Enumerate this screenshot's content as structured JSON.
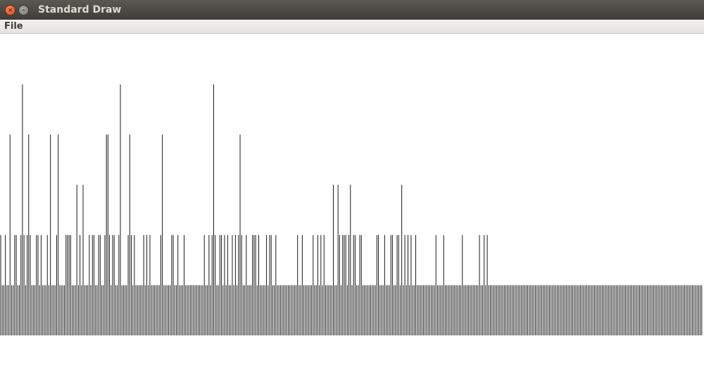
{
  "window": {
    "title": "Standard Draw",
    "close_glyph": "×",
    "minimize_glyph": "–"
  },
  "menu": {
    "items": [
      {
        "label": "File"
      }
    ]
  },
  "chart_data": {
    "type": "bar",
    "values_encoding": "repeat_runs",
    "runs": [
      [
        1,
        1
      ],
      [
        2,
        0
      ],
      [
        1,
        1
      ],
      [
        2,
        0
      ],
      [
        1,
        3
      ],
      [
        1,
        0
      ],
      [
        1,
        0
      ],
      [
        1,
        1
      ],
      [
        1,
        1
      ],
      [
        2,
        0
      ],
      [
        1,
        1
      ],
      [
        1,
        4
      ],
      [
        1,
        1
      ],
      [
        1,
        0
      ],
      [
        1,
        1
      ],
      [
        1,
        3
      ],
      [
        1,
        1
      ],
      [
        3,
        0
      ],
      [
        1,
        1
      ],
      [
        1,
        1
      ],
      [
        1,
        0
      ],
      [
        1,
        1
      ],
      [
        1,
        0
      ],
      [
        2,
        0
      ],
      [
        1,
        1
      ],
      [
        1,
        0
      ],
      [
        1,
        3
      ],
      [
        2,
        0
      ],
      [
        1,
        0
      ],
      [
        1,
        1
      ],
      [
        1,
        3
      ],
      [
        2,
        0
      ],
      [
        2,
        0
      ],
      [
        4,
        1
      ],
      [
        1,
        0
      ],
      [
        2,
        0
      ],
      [
        1,
        2
      ],
      [
        1,
        0
      ],
      [
        1,
        1
      ],
      [
        1,
        0
      ],
      [
        1,
        2
      ],
      [
        2,
        0
      ],
      [
        1,
        0
      ],
      [
        1,
        1
      ],
      [
        1,
        0
      ],
      [
        1,
        1
      ],
      [
        1,
        1
      ],
      [
        1,
        0
      ],
      [
        1,
        0
      ],
      [
        1,
        1
      ],
      [
        1,
        1
      ],
      [
        1,
        0
      ],
      [
        1,
        0
      ],
      [
        1,
        1
      ],
      [
        2,
        3
      ],
      [
        1,
        1
      ],
      [
        1,
        0
      ],
      [
        1,
        1
      ],
      [
        1,
        1
      ],
      [
        2,
        0
      ],
      [
        1,
        1
      ],
      [
        1,
        4
      ],
      [
        2,
        0
      ],
      [
        2,
        0
      ],
      [
        1,
        1
      ],
      [
        1,
        3
      ],
      [
        1,
        1
      ],
      [
        1,
        0
      ],
      [
        1,
        1
      ],
      [
        2,
        0
      ],
      [
        1,
        0
      ],
      [
        2,
        0
      ],
      [
        1,
        1
      ],
      [
        1,
        0
      ],
      [
        1,
        1
      ],
      [
        1,
        0
      ],
      [
        1,
        1
      ],
      [
        1,
        0
      ],
      [
        3,
        0
      ],
      [
        2,
        0
      ],
      [
        1,
        1
      ],
      [
        1,
        3
      ],
      [
        1,
        0
      ],
      [
        3,
        0
      ],
      [
        1,
        0
      ],
      [
        1,
        1
      ],
      [
        1,
        1
      ],
      [
        1,
        0
      ],
      [
        1,
        0
      ],
      [
        1,
        1
      ],
      [
        1,
        0
      ],
      [
        1,
        0
      ],
      [
        1,
        0
      ],
      [
        1,
        1
      ],
      [
        3,
        0
      ],
      [
        3,
        0
      ],
      [
        1,
        0
      ],
      [
        3,
        0
      ],
      [
        2,
        0
      ],
      [
        1,
        1
      ],
      [
        1,
        0
      ],
      [
        1,
        0
      ],
      [
        1,
        1
      ],
      [
        1,
        0
      ],
      [
        1,
        1
      ],
      [
        1,
        4
      ],
      [
        1,
        1
      ],
      [
        2,
        0
      ],
      [
        1,
        1
      ],
      [
        1,
        1
      ],
      [
        1,
        0
      ],
      [
        1,
        1
      ],
      [
        1,
        0
      ],
      [
        1,
        1
      ],
      [
        1,
        0
      ],
      [
        1,
        0
      ],
      [
        1,
        1
      ],
      [
        1,
        0
      ],
      [
        1,
        1
      ],
      [
        1,
        0
      ],
      [
        1,
        1
      ],
      [
        1,
        3
      ],
      [
        1,
        1
      ],
      [
        1,
        0
      ],
      [
        1,
        0
      ],
      [
        1,
        1
      ],
      [
        3,
        0
      ],
      [
        1,
        1
      ],
      [
        1,
        1
      ],
      [
        1,
        1
      ],
      [
        1,
        0
      ],
      [
        1,
        1
      ],
      [
        1,
        0
      ],
      [
        1,
        0
      ],
      [
        2,
        0
      ],
      [
        1,
        1
      ],
      [
        1,
        0
      ],
      [
        1,
        1
      ],
      [
        1,
        1
      ],
      [
        1,
        0
      ],
      [
        1,
        0
      ],
      [
        1,
        1
      ],
      [
        3,
        0
      ],
      [
        2,
        0
      ],
      [
        2,
        0
      ],
      [
        2,
        0
      ],
      [
        2,
        0
      ],
      [
        2,
        0
      ],
      [
        1,
        1
      ],
      [
        1,
        0
      ],
      [
        1,
        0
      ],
      [
        1,
        1
      ],
      [
        1,
        0
      ],
      [
        1,
        0
      ],
      [
        2,
        0
      ],
      [
        2,
        0
      ],
      [
        1,
        1
      ],
      [
        2,
        0
      ],
      [
        1,
        1
      ],
      [
        1,
        0
      ],
      [
        1,
        1
      ],
      [
        1,
        0
      ],
      [
        1,
        1
      ],
      [
        1,
        0
      ],
      [
        1,
        0
      ],
      [
        1,
        0
      ],
      [
        2,
        0
      ],
      [
        1,
        2
      ],
      [
        1,
        0
      ],
      [
        1,
        0
      ],
      [
        1,
        2
      ],
      [
        1,
        1
      ],
      [
        1,
        0
      ],
      [
        1,
        1
      ],
      [
        1,
        1
      ],
      [
        1,
        1
      ],
      [
        1,
        0
      ],
      [
        1,
        1
      ],
      [
        1,
        2
      ],
      [
        1,
        0
      ],
      [
        1,
        1
      ],
      [
        1,
        1
      ],
      [
        1,
        0
      ],
      [
        1,
        0
      ],
      [
        1,
        1
      ],
      [
        1,
        1
      ],
      [
        1,
        0
      ],
      [
        1,
        0
      ],
      [
        3,
        0
      ],
      [
        2,
        0
      ],
      [
        2,
        0
      ],
      [
        1,
        1
      ],
      [
        1,
        1
      ],
      [
        3,
        0
      ],
      [
        1,
        1
      ],
      [
        3,
        0
      ],
      [
        1,
        1
      ],
      [
        1,
        1
      ],
      [
        1,
        0
      ],
      [
        1,
        0
      ],
      [
        1,
        1
      ],
      [
        1,
        1
      ],
      [
        1,
        0
      ],
      [
        1,
        2
      ],
      [
        1,
        0
      ],
      [
        1,
        1
      ],
      [
        1,
        0
      ],
      [
        1,
        1
      ],
      [
        1,
        0
      ],
      [
        1,
        1
      ],
      [
        1,
        0
      ],
      [
        1,
        0
      ],
      [
        1,
        1
      ],
      [
        2,
        0
      ],
      [
        2,
        0
      ],
      [
        2,
        0
      ],
      [
        3,
        0
      ],
      [
        3,
        0
      ],
      [
        1,
        1
      ],
      [
        2,
        0
      ],
      [
        2,
        0
      ],
      [
        1,
        1
      ],
      [
        2,
        0
      ],
      [
        2,
        0
      ],
      [
        2,
        0
      ],
      [
        2,
        0
      ],
      [
        3,
        0
      ],
      [
        1,
        1
      ],
      [
        2,
        0
      ],
      [
        2,
        0
      ],
      [
        2,
        0
      ],
      [
        2,
        0
      ],
      [
        2,
        0
      ],
      [
        1,
        1
      ],
      [
        2,
        0
      ],
      [
        1,
        1
      ],
      [
        1,
        0
      ],
      [
        1,
        1
      ],
      [
        2,
        0
      ],
      [
        2,
        0
      ],
      [
        2,
        0
      ],
      [
        2,
        0
      ],
      [
        2,
        0
      ],
      [
        2,
        0
      ],
      [
        2,
        0
      ],
      [
        2,
        0
      ],
      [
        2,
        0
      ],
      [
        2,
        0
      ],
      [
        2,
        0
      ],
      [
        2,
        0
      ],
      [
        2,
        0
      ],
      [
        2,
        0
      ],
      [
        2,
        0
      ],
      [
        2,
        0
      ],
      [
        2,
        0
      ],
      [
        2,
        0
      ],
      [
        2,
        0
      ],
      [
        2,
        0
      ],
      [
        2,
        0
      ],
      [
        2,
        0
      ],
      [
        2,
        0
      ],
      [
        2,
        0
      ],
      [
        2,
        0
      ],
      [
        2,
        0
      ],
      [
        2,
        0
      ],
      [
        2,
        0
      ],
      [
        2,
        0
      ],
      [
        2,
        0
      ],
      [
        2,
        0
      ],
      [
        2,
        0
      ],
      [
        2,
        0
      ],
      [
        2,
        0
      ],
      [
        2,
        0
      ],
      [
        2,
        0
      ],
      [
        2,
        0
      ],
      [
        2,
        0
      ],
      [
        2,
        0
      ],
      [
        2,
        0
      ],
      [
        2,
        0
      ],
      [
        2,
        0
      ],
      [
        2,
        0
      ],
      [
        2,
        0
      ],
      [
        2,
        0
      ],
      [
        2,
        0
      ],
      [
        2,
        0
      ],
      [
        2,
        0
      ],
      [
        2,
        0
      ],
      [
        2,
        0
      ],
      [
        2,
        0
      ],
      [
        2,
        0
      ],
      [
        2,
        0
      ],
      [
        2,
        0
      ],
      [
        2,
        0
      ],
      [
        2,
        0
      ],
      [
        2,
        0
      ],
      [
        2,
        0
      ],
      [
        2,
        0
      ],
      [
        2,
        0
      ],
      [
        2,
        0
      ],
      [
        2,
        0
      ],
      [
        2,
        0
      ],
      [
        2,
        0
      ],
      [
        2,
        0
      ],
      [
        2,
        0
      ],
      [
        2,
        0
      ],
      [
        2,
        0
      ],
      [
        2,
        0
      ]
    ],
    "value_offset": 1,
    "ylim": [
      0,
      5
    ],
    "bar_color": "#1a1a1a",
    "grid": false,
    "legend": "none"
  }
}
